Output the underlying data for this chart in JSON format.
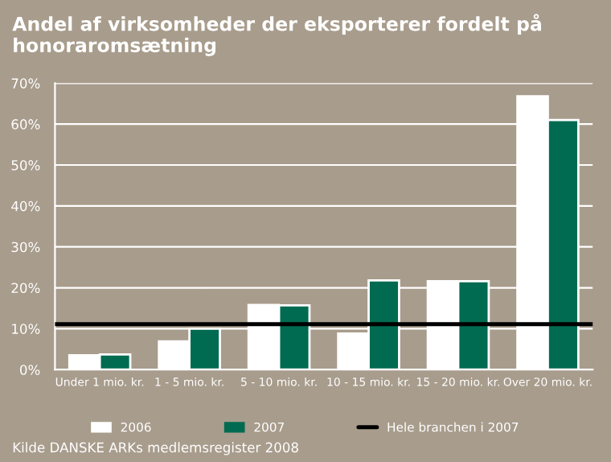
{
  "chart_data": {
    "type": "bar",
    "title": "Andel af virksomheder der eksporterer fordelt på honoraromsætning",
    "categories": [
      "Under 1 mio. kr.",
      "1 - 5 mio. kr.",
      "5 - 10 mio. kr.",
      "10 - 15 mio. kr.",
      "15 - 20 mio. kr.",
      "Over 20 mio. kr."
    ],
    "series": [
      {
        "name": "2006",
        "color": "#ffffff",
        "values": [
          3.5,
          6.9,
          15.8,
          8.8,
          21.6,
          66.8
        ]
      },
      {
        "name": "2007",
        "color": "#006b50",
        "values": [
          3.7,
          10.0,
          15.7,
          21.8,
          21.6,
          61.0
        ]
      }
    ],
    "ref_lines": [
      {
        "axis": "y",
        "value": 11.1,
        "label": "Hele branchen i 2007",
        "color": "#000000",
        "line_style": "solid"
      }
    ],
    "ylim": [
      0,
      70
    ],
    "yticks": [
      {
        "value": 0,
        "label": "0%"
      },
      {
        "value": 10,
        "label": "10%"
      },
      {
        "value": 20,
        "label": "20%"
      },
      {
        "value": 30,
        "label": "30%"
      },
      {
        "value": 40,
        "label": "40%"
      },
      {
        "value": 50,
        "label": "50%"
      },
      {
        "value": 60,
        "label": "60%"
      },
      {
        "value": 70,
        "label": "70%"
      }
    ],
    "grid": "y",
    "legend": "bottom",
    "annotations": [
      "Kilde DANSKE ARKs medlemsregister 2008"
    ]
  }
}
